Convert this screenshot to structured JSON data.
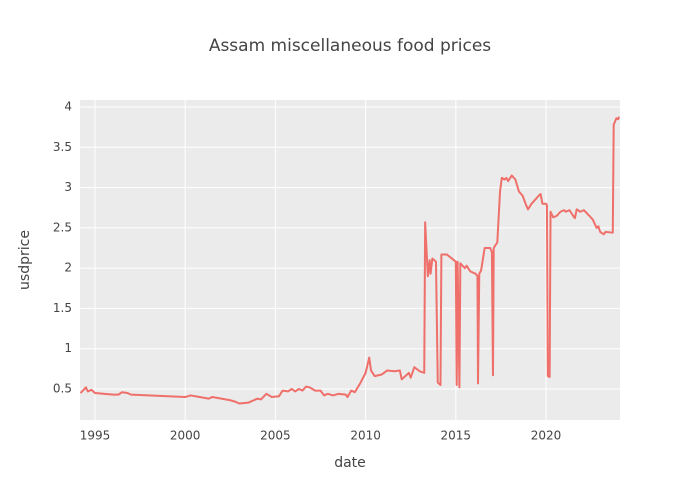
{
  "chart_data": {
    "type": "line",
    "title": "Assam miscellaneous food prices",
    "x_label": "date",
    "y_label": "usdprice",
    "x": [
      1994.2,
      1994.5,
      1994.6,
      1994.8,
      1995.0,
      1996.0,
      1996.3,
      1996.5,
      1996.8,
      1997.0,
      2000.0,
      2000.3,
      2000.8,
      2001.3,
      2001.5,
      2002.5,
      2002.8,
      2003.0,
      2003.5,
      2004.0,
      2004.2,
      2004.5,
      2004.8,
      2005.2,
      2005.4,
      2005.7,
      2005.9,
      2006.1,
      2006.3,
      2006.5,
      2006.7,
      2006.9,
      2007.2,
      2007.5,
      2007.7,
      2007.9,
      2008.2,
      2008.5,
      2008.9,
      2009.0,
      2009.2,
      2009.4,
      2009.7,
      2010.0,
      2010.2,
      2010.3,
      2010.5,
      2010.9,
      2011.2,
      2011.6,
      2011.9,
      2012.0,
      2012.4,
      2012.5,
      2012.7,
      2013.0,
      2013.25,
      2013.3,
      2013.45,
      2013.55,
      2013.6,
      2013.7,
      2013.9,
      2014.0,
      2014.15,
      2014.2,
      2014.5,
      2015.0,
      2015.05,
      2015.1,
      2015.2,
      2015.25,
      2015.5,
      2015.6,
      2015.8,
      2016.1,
      2016.2,
      2016.23,
      2016.3,
      2016.4,
      2016.6,
      2016.9,
      2017.0,
      2017.06,
      2017.1,
      2017.3,
      2017.45,
      2017.55,
      2017.7,
      2017.8,
      2017.9,
      2018.1,
      2018.3,
      2018.5,
      2018.7,
      2018.9,
      2019.0,
      2019.2,
      2019.4,
      2019.6,
      2019.7,
      2019.8,
      2020.0,
      2020.05,
      2020.1,
      2020.2,
      2020.25,
      2020.4,
      2020.6,
      2020.8,
      2021.0,
      2021.1,
      2021.3,
      2021.5,
      2021.6,
      2021.7,
      2021.9,
      2022.1,
      2022.4,
      2022.6,
      2022.8,
      2022.9,
      2023.0,
      2023.2,
      2023.3,
      2023.7,
      2023.75,
      2023.9,
      2024.0,
      2024.05
    ],
    "series": [
      {
        "name": "usdprice",
        "color": "#ef6f6a",
        "values": [
          0.45,
          0.52,
          0.47,
          0.49,
          0.45,
          0.43,
          0.43,
          0.46,
          0.45,
          0.43,
          0.4,
          0.42,
          0.4,
          0.38,
          0.4,
          0.36,
          0.34,
          0.32,
          0.33,
          0.38,
          0.37,
          0.44,
          0.4,
          0.41,
          0.48,
          0.47,
          0.5,
          0.47,
          0.5,
          0.48,
          0.53,
          0.52,
          0.48,
          0.48,
          0.42,
          0.44,
          0.42,
          0.44,
          0.43,
          0.4,
          0.48,
          0.46,
          0.57,
          0.7,
          0.89,
          0.73,
          0.66,
          0.68,
          0.73,
          0.72,
          0.73,
          0.62,
          0.7,
          0.64,
          0.77,
          0.72,
          0.7,
          2.57,
          1.9,
          2.1,
          1.93,
          2.12,
          2.08,
          0.58,
          0.55,
          2.17,
          2.17,
          2.08,
          0.55,
          2.08,
          0.52,
          2.06,
          2.0,
          2.03,
          1.96,
          1.93,
          1.9,
          0.57,
          1.93,
          1.97,
          2.25,
          2.25,
          2.2,
          0.67,
          2.25,
          2.32,
          2.95,
          3.12,
          3.1,
          3.12,
          3.08,
          3.15,
          3.1,
          2.95,
          2.9,
          2.78,
          2.73,
          2.8,
          2.85,
          2.9,
          2.92,
          2.8,
          2.8,
          2.78,
          0.66,
          0.65,
          2.7,
          2.63,
          2.65,
          2.7,
          2.72,
          2.7,
          2.72,
          2.65,
          2.62,
          2.73,
          2.7,
          2.72,
          2.65,
          2.6,
          2.5,
          2.52,
          2.45,
          2.42,
          2.45,
          2.44,
          3.78,
          3.86,
          3.85,
          3.88
        ]
      }
    ],
    "xlim": [
      1994.17,
      2024.1
    ],
    "xticks": [
      1995,
      2000,
      2005,
      2010,
      2015,
      2020
    ],
    "ylim": [
      0.115,
      4.087
    ],
    "yticks": [
      0.5,
      1,
      1.5,
      2,
      2.5,
      3,
      3.5,
      4
    ],
    "grid": true
  }
}
